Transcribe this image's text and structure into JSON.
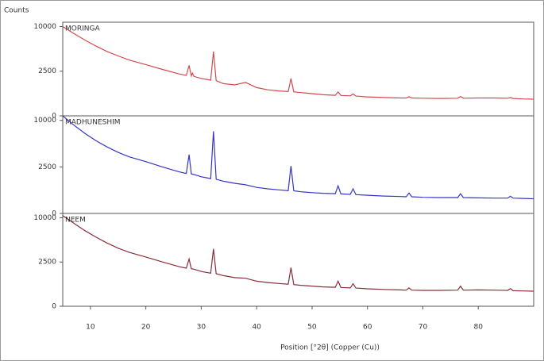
{
  "chart_data": [
    {
      "type": "line",
      "ylabel": "Counts",
      "yscale": "sqrt",
      "ylim": [
        0,
        11000
      ],
      "yticks": [
        0,
        2500,
        10000
      ],
      "xlim": [
        5,
        90
      ],
      "x": [
        5,
        7,
        9,
        11,
        13,
        15,
        17,
        20,
        23,
        26,
        27.3,
        27.8,
        28.2,
        28.4,
        28.7,
        30,
        31.7,
        32.2,
        32.7,
        34,
        36,
        38,
        40,
        42,
        44,
        45.7,
        46.2,
        46.7,
        48,
        50,
        52,
        54.2,
        54.7,
        55.2,
        56.9,
        57.4,
        57.9,
        60,
        63,
        66,
        67,
        67.5,
        68,
        70,
        73,
        76.3,
        76.8,
        77.3,
        80,
        83,
        85.3,
        85.8,
        86.3,
        88,
        90
      ],
      "series": [
        {
          "name": "MORINGA",
          "color": "#d24a4e",
          "values": [
            10000,
            8500,
            7200,
            6100,
            5200,
            4500,
            3900,
            3300,
            2700,
            2200,
            2050,
            3200,
            2000,
            2300,
            1950,
            1750,
            1600,
            5200,
            1550,
            1300,
            1200,
            1400,
            1000,
            850,
            780,
            740,
            1750,
            720,
            680,
            620,
            560,
            530,
            720,
            520,
            500,
            600,
            490,
            450,
            420,
            400,
            400,
            460,
            400,
            390,
            380,
            390,
            470,
            390,
            400,
            400,
            390,
            420,
            380,
            360,
            350
          ]
        }
      ]
    },
    {
      "type": "line",
      "yscale": "sqrt",
      "ylim": [
        0,
        11000
      ],
      "yticks": [
        0,
        2500,
        10000
      ],
      "xlim": [
        5,
        90
      ],
      "x": [
        5,
        7,
        9,
        11,
        13,
        15,
        17,
        20,
        23,
        26,
        27.3,
        27.8,
        28.2,
        28.4,
        28.7,
        30,
        31.7,
        32.2,
        32.7,
        34,
        36,
        38,
        40,
        42,
        44,
        45.7,
        46.2,
        46.7,
        48,
        50,
        52,
        54.2,
        54.7,
        55.2,
        56.9,
        57.4,
        57.9,
        60,
        63,
        66,
        67,
        67.5,
        68,
        70,
        73,
        76.3,
        76.8,
        77.3,
        80,
        83,
        85.3,
        85.8,
        86.3,
        88,
        90
      ],
      "series": [
        {
          "name": "MADHUNESHIM",
          "color": "#3535c8",
          "values": [
            11000,
            9000,
            7400,
            6100,
            5100,
            4300,
            3700,
            3100,
            2500,
            2000,
            1850,
            4000,
            1800,
            1780,
            1750,
            1550,
            1400,
            7800,
            1350,
            1200,
            1050,
            950,
            780,
            700,
            640,
            600,
            2600,
            590,
            540,
            500,
            470,
            450,
            880,
            440,
            420,
            700,
            410,
            380,
            350,
            330,
            320,
            480,
            320,
            300,
            290,
            290,
            450,
            290,
            280,
            270,
            270,
            340,
            270,
            260,
            250
          ]
        }
      ]
    },
    {
      "type": "line",
      "yscale": "sqrt",
      "ylim": [
        0,
        11000
      ],
      "yticks": [
        0,
        2500,
        10000
      ],
      "xlim": [
        5,
        90
      ],
      "xticks": [
        10,
        20,
        30,
        40,
        50,
        60,
        70,
        80
      ],
      "xlabel": "Position [°2θ] (Copper (Cu))",
      "x": [
        5,
        7,
        9,
        11,
        13,
        15,
        17,
        20,
        23,
        26,
        27.3,
        27.8,
        28.2,
        28.4,
        28.7,
        30,
        31.7,
        32.2,
        32.7,
        34,
        36,
        38,
        40,
        42,
        44,
        45.7,
        46.2,
        46.7,
        48,
        50,
        52,
        54.2,
        54.7,
        55.2,
        56.9,
        57.4,
        57.9,
        60,
        63,
        66,
        67,
        67.5,
        68,
        70,
        73,
        76.3,
        76.8,
        77.3,
        80,
        83,
        85.3,
        85.8,
        86.3,
        88,
        90
      ],
      "series": [
        {
          "name": "NEEM",
          "color": "#8a2d3a",
          "values": [
            10500,
            8800,
            7300,
            6100,
            5100,
            4300,
            3700,
            3100,
            2500,
            2000,
            1850,
            2850,
            1800,
            1780,
            1750,
            1550,
            1400,
            4200,
            1350,
            1200,
            1050,
            1000,
            800,
            720,
            660,
            620,
            1900,
            600,
            560,
            520,
            480,
            460,
            800,
            450,
            430,
            650,
            420,
            390,
            360,
            340,
            330,
            430,
            330,
            320,
            320,
            330,
            520,
            330,
            340,
            330,
            320,
            400,
            310,
            300,
            290
          ]
        }
      ]
    }
  ]
}
